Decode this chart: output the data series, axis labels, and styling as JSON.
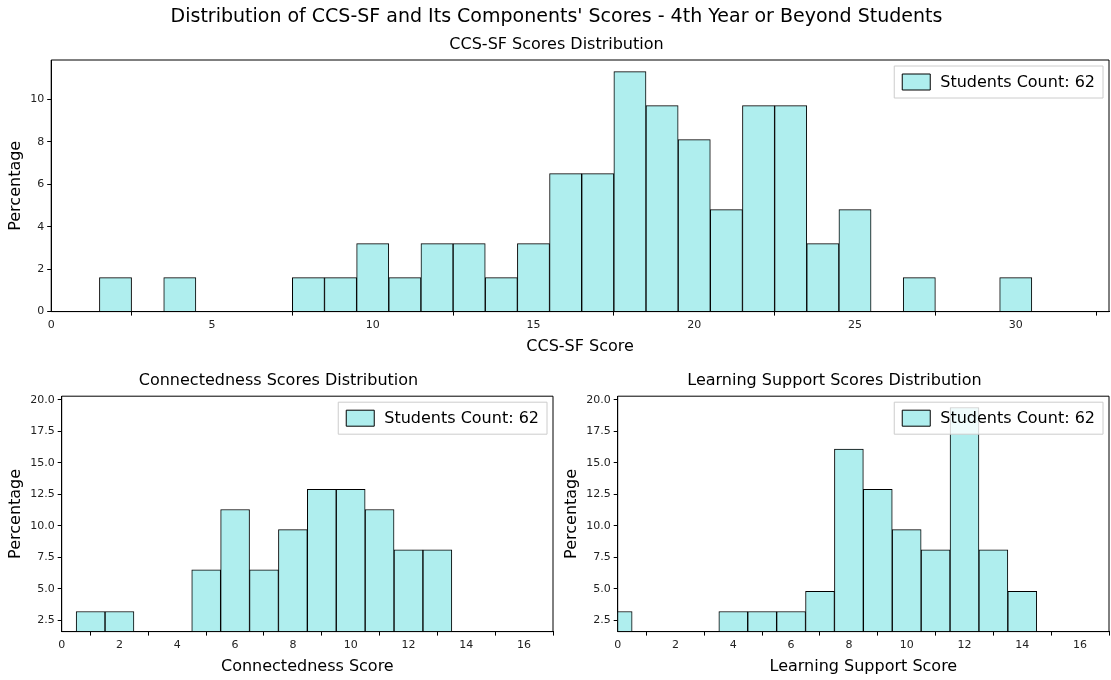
{
  "chart_data": [
    {
      "type": "histogram",
      "title": "Distribution of CCS-SF and Its Components' Scores - 4th Year or Beyond Students",
      "subtitle": "CCS-SF Scores Distribution",
      "xlabel": "CCS-SF Score",
      "ylabel": "Percentage",
      "bins": [
        1.5,
        2.5,
        3.5,
        4.5,
        5.5,
        6.5,
        7.5,
        8.5,
        9.5,
        10.5,
        11.5,
        12.5,
        13.5,
        14.5,
        15.5,
        16.5,
        17.5,
        18.5,
        19.5,
        20.5,
        21.5,
        22.5,
        23.5,
        24.5,
        25.5,
        26.5,
        27.5,
        28.5,
        29.5,
        30.5
      ],
      "series": [
        {
          "name": "Students Count: 62",
          "color": "#afeeee",
          "values": [
            1.6,
            0,
            1.6,
            0,
            0,
            0,
            1.6,
            1.6,
            3.2,
            1.6,
            3.2,
            3.2,
            1.6,
            3.2,
            6.5,
            6.5,
            11.3,
            9.7,
            8.1,
            4.8,
            9.7,
            9.7,
            3.2,
            4.8,
            0,
            1.6,
            0,
            0,
            1.6
          ]
        }
      ],
      "xlim": [
        0,
        32.9
      ],
      "xticks": [
        0,
        5,
        10,
        15,
        20,
        25,
        30
      ],
      "ylim": [
        0,
        11.85
      ],
      "yticks": [
        0,
        2,
        4,
        6,
        8,
        10
      ],
      "grid": false,
      "legend": "top right"
    },
    {
      "type": "histogram",
      "title": "Connectedness Scores Distribution",
      "xlabel": "Connectedness Score",
      "ylabel": "Percentage",
      "bins": [
        0.5,
        1.5,
        2.5,
        3.5,
        4.5,
        5.5,
        6.5,
        7.5,
        8.5,
        9.5,
        10.5,
        11.5,
        12.5,
        13.5
      ],
      "series": [
        {
          "name": "Students Count: 62",
          "color": "#afeeee",
          "values": [
            3.2,
            3.2,
            null,
            null,
            6.5,
            11.3,
            6.5,
            9.7,
            12.9,
            12.9,
            11.3,
            8.1,
            8.1
          ]
        }
      ],
      "xlim": [
        0,
        17
      ],
      "xticks": [
        0,
        2,
        4,
        6,
        8,
        10,
        12,
        14,
        16
      ],
      "ylim": [
        1.6,
        20.3
      ],
      "yticks": [
        2.5,
        {
          "value": 5,
          "label": "5.0"
        },
        7.5,
        {
          "value": 10,
          "label": "10.0"
        },
        12.5,
        {
          "value": 15,
          "label": "15.0"
        },
        17.5,
        {
          "value": 20,
          "label": "20.0"
        }
      ],
      "grid": false,
      "legend": "top right"
    },
    {
      "type": "histogram",
      "title": "Learning Support Scores Distribution",
      "xlabel": "Learning Support Score",
      "ylabel": "Percentage",
      "bins": [
        -0.5,
        0.5,
        1.5,
        2.5,
        3.5,
        4.5,
        5.5,
        6.5,
        7.5,
        8.5,
        9.5,
        10.5,
        11.5,
        12.5,
        13.5,
        14.5
      ],
      "series": [
        {
          "name": "Students Count: 62",
          "color": "#afeeee",
          "values": [
            3.2,
            null,
            null,
            null,
            3.2,
            3.2,
            3.2,
            4.8,
            16.1,
            12.9,
            9.7,
            8.1,
            19.4,
            8.1,
            4.8
          ]
        }
      ],
      "xlim": [
        0,
        17
      ],
      "xticks": [
        0,
        2,
        4,
        6,
        8,
        10,
        12,
        14,
        16
      ],
      "ylim": [
        1.6,
        20.3
      ],
      "yticks": [
        2.5,
        {
          "value": 5,
          "label": "5.0"
        },
        7.5,
        {
          "value": 10,
          "label": "10.0"
        },
        12.5,
        {
          "value": 15,
          "label": "15.0"
        },
        17.5,
        {
          "value": 20,
          "label": "20.0"
        }
      ],
      "grid": false,
      "legend": "top right"
    }
  ]
}
